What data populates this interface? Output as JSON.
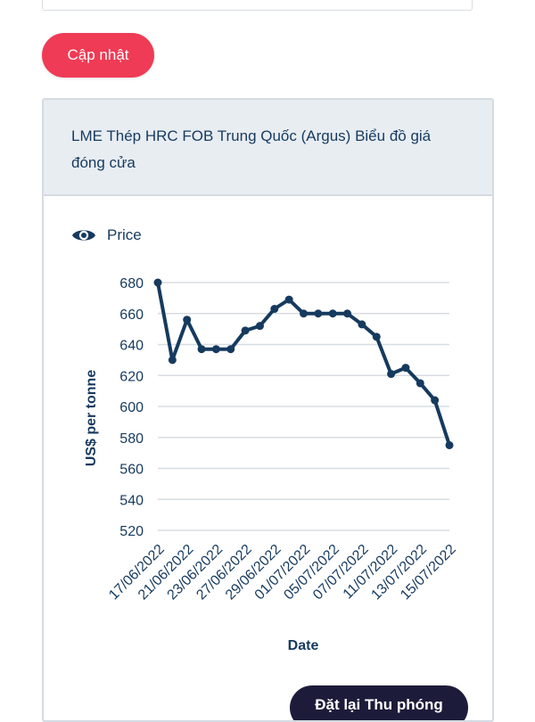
{
  "update_button": {
    "label": "Cập nhật"
  },
  "card": {
    "title": "LME Thép HRC FOB Trung Quốc (Argus) Biểu đồ giá đóng cửa",
    "reset_zoom_label": "Đặt lại Thu phóng"
  },
  "legend": {
    "label": "Price",
    "icon": "eye-icon"
  },
  "colors": {
    "accent": "#ef3b55",
    "line": "#163a5f",
    "dark_button": "#1c1c3a",
    "header_bg": "#e8edf2"
  },
  "chart_data": {
    "type": "line",
    "title": "",
    "xlabel": "Date",
    "ylabel": "US$ per tonne",
    "ylim": [
      520,
      680
    ],
    "yticks": [
      520,
      540,
      560,
      580,
      600,
      620,
      640,
      660,
      680
    ],
    "grid": true,
    "x_tick_labels": [
      "17/06/2022",
      "21/06/2022",
      "23/06/2022",
      "27/06/2022",
      "29/06/2022",
      "01/07/2022",
      "05/07/2022",
      "07/07/2022",
      "11/07/2022",
      "13/07/2022",
      "15/07/2022"
    ],
    "x": [
      "17/06/2022",
      "20/06/2022",
      "21/06/2022",
      "22/06/2022",
      "23/06/2022",
      "24/06/2022",
      "27/06/2022",
      "28/06/2022",
      "29/06/2022",
      "30/06/2022",
      "01/07/2022",
      "04/07/2022",
      "05/07/2022",
      "06/07/2022",
      "07/07/2022",
      "08/07/2022",
      "11/07/2022",
      "12/07/2022",
      "13/07/2022",
      "14/07/2022",
      "15/07/2022"
    ],
    "series": [
      {
        "name": "Price",
        "values": [
          680,
          630,
          656,
          637,
          637,
          637,
          649,
          652,
          663,
          669,
          660,
          660,
          660,
          660,
          653,
          645,
          621,
          625,
          615,
          604,
          575
        ]
      }
    ]
  }
}
